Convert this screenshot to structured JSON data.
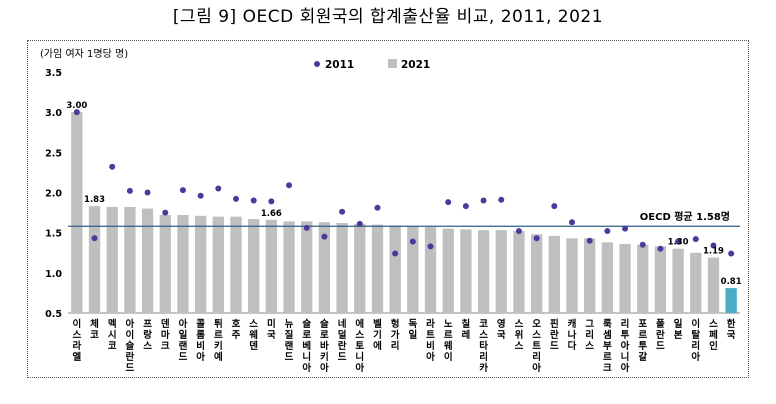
{
  "title": "[그림 9] OECD 회원국의 합계출산율 비교, 2011, 2021",
  "chart_data": {
    "type": "bar",
    "ylabel": "(가임 여자 1명당 명)",
    "ylim": [
      0.5,
      3.5
    ],
    "yticks": [
      "0.5",
      "1.0",
      "1.5",
      "2.0",
      "2.5",
      "3.0",
      "3.5"
    ],
    "categories": [
      "이스라엘",
      "체코",
      "멕시코",
      "아이슬란드",
      "프랑스",
      "덴마크",
      "아일랜드",
      "콜롬비아",
      "튀르키예",
      "호주",
      "스웨덴",
      "미국",
      "뉴질랜드",
      "슬로베니아",
      "슬로바키아",
      "네덜란드",
      "에스토니아",
      "벨기에",
      "헝가리",
      "독일",
      "라트비아",
      "노르웨이",
      "칠레",
      "코스타리카",
      "영국",
      "스위스",
      "오스트리아",
      "핀란드",
      "캐나다",
      "그리스",
      "룩셈부르크",
      "리투아니아",
      "포르투갈",
      "폴란드",
      "일본",
      "이탈리아",
      "스페인",
      "한국"
    ],
    "series": [
      {
        "name": "2011",
        "style": "dot",
        "color": "#4b3a9c",
        "values": [
          3.0,
          1.43,
          2.32,
          2.02,
          2.0,
          1.75,
          2.03,
          1.96,
          2.05,
          1.92,
          1.9,
          1.89,
          2.09,
          1.56,
          1.45,
          1.76,
          1.61,
          1.81,
          1.24,
          1.39,
          1.33,
          1.88,
          1.83,
          1.9,
          1.91,
          1.52,
          1.43,
          1.83,
          1.63,
          1.4,
          1.52,
          1.55,
          1.35,
          1.3,
          1.39,
          1.42,
          1.34,
          1.24
        ]
      },
      {
        "name": "2021",
        "style": "bar",
        "color": "#bfbfbf",
        "highlight_color": "#4bacc6",
        "values": [
          3.0,
          1.83,
          1.82,
          1.82,
          1.8,
          1.72,
          1.72,
          1.71,
          1.7,
          1.7,
          1.67,
          1.66,
          1.64,
          1.64,
          1.63,
          1.62,
          1.61,
          1.6,
          1.59,
          1.58,
          1.57,
          1.55,
          1.54,
          1.53,
          1.53,
          1.52,
          1.48,
          1.46,
          1.43,
          1.43,
          1.38,
          1.36,
          1.35,
          1.33,
          1.3,
          1.25,
          1.19,
          0.81
        ]
      }
    ],
    "data_labels": [
      {
        "index": 0,
        "text": "3.00"
      },
      {
        "index": 1,
        "text": "1.83"
      },
      {
        "index": 11,
        "text": "1.66"
      },
      {
        "index": 34,
        "text": "1.30"
      },
      {
        "index": 36,
        "text": "1.19"
      },
      {
        "index": 37,
        "text": "0.81"
      }
    ],
    "reference_line": {
      "value": 1.58,
      "label": "OECD 평균 1.58명",
      "color": "#2e5e8a"
    },
    "legend": {
      "position": "top-center",
      "items": [
        "2011",
        "2021"
      ]
    },
    "grid": false
  }
}
